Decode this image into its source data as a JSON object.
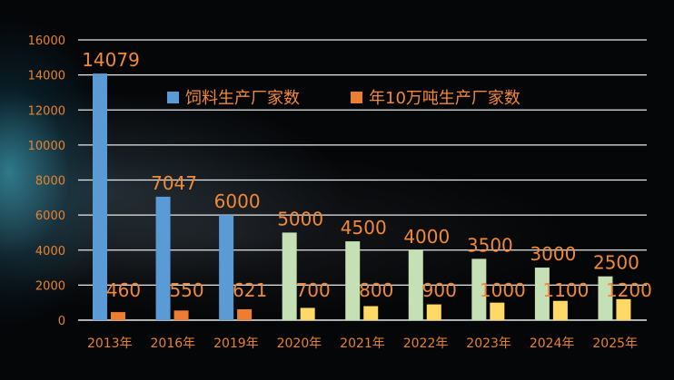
{
  "chart_data": {
    "type": "bar",
    "categories": [
      "2013年",
      "2016年",
      "2019年",
      "2020年",
      "2021年",
      "2022年",
      "2023年",
      "2024年",
      "2025年"
    ],
    "series": [
      {
        "name": "饲料生产厂家数",
        "values": [
          14079,
          7047,
          6000,
          5000,
          4500,
          4000,
          3500,
          3000,
          2500
        ],
        "labels": [
          "14079",
          "7047",
          "6000",
          "5000",
          "4500",
          "4000",
          "3500",
          "3000",
          "2500"
        ],
        "colors": [
          "#5b9bd5",
          "#5b9bd5",
          "#5b9bd5",
          "#c5e0b4",
          "#c5e0b4",
          "#c5e0b4",
          "#c5e0b4",
          "#c5e0b4",
          "#c5e0b4"
        ]
      },
      {
        "name": "年10万吨生产厂家数",
        "values": [
          460,
          550,
          621,
          700,
          800,
          900,
          1000,
          1100,
          1200
        ],
        "labels": [
          "460",
          "550",
          "621",
          "700",
          "800",
          "900",
          "1000",
          "1100",
          "1200"
        ],
        "colors": [
          "#ed7d31",
          "#ed7d31",
          "#ed7d31",
          "#ffd966",
          "#ffd966",
          "#ffd966",
          "#ffd966",
          "#ffd966",
          "#ffd966"
        ]
      }
    ],
    "ylim": [
      0,
      16000
    ],
    "yticks": [
      0,
      2000,
      4000,
      6000,
      8000,
      10000,
      12000,
      14000,
      16000
    ],
    "grid": true,
    "legend_position": "top-center",
    "legend_colors": [
      "#5b9bd5",
      "#ed7d31"
    ],
    "label_color": "#f0893a",
    "axis_label_color": "#e8822f",
    "gridline_color": "#e8e8e8"
  }
}
